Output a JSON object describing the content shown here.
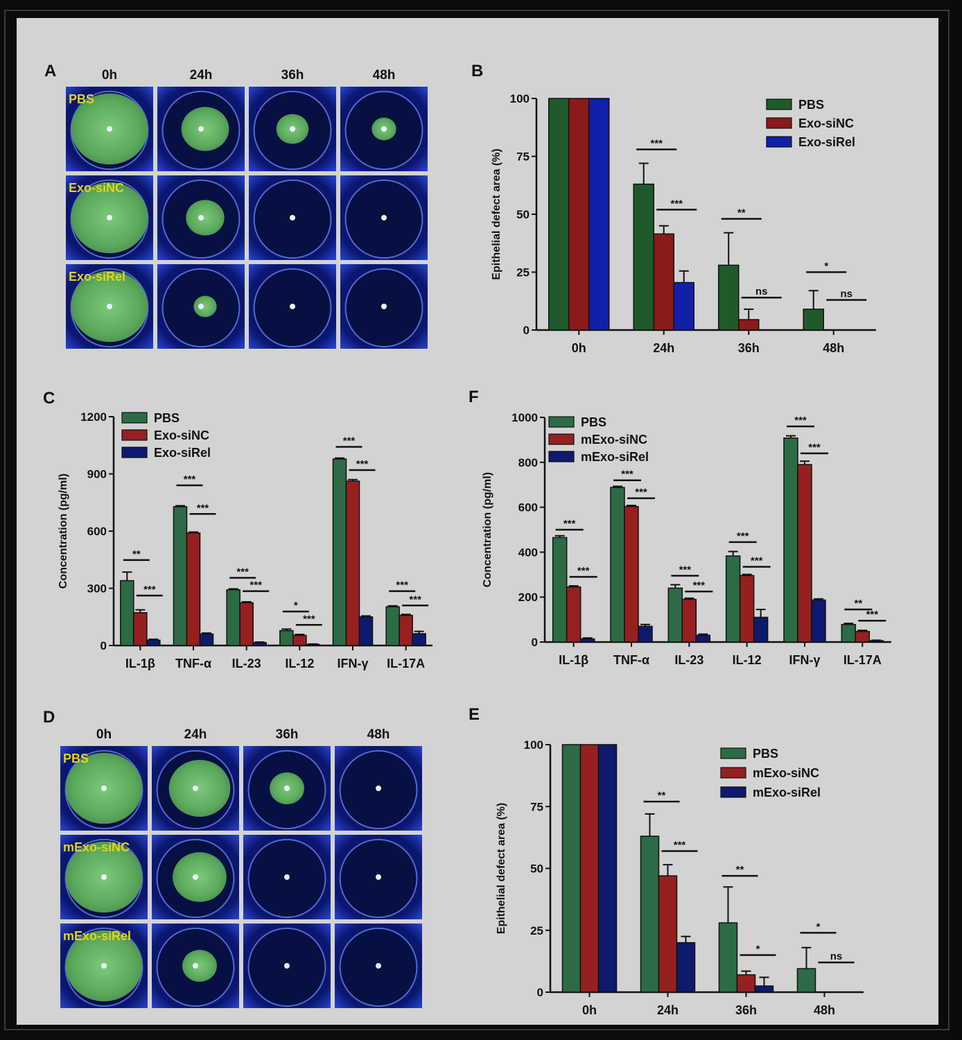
{
  "panels": {
    "A": {
      "label": "A",
      "times": [
        "0h",
        "24h",
        "36h",
        "48h"
      ],
      "rows": [
        "PBS",
        "Exo-siNC",
        "Exo-siRel"
      ],
      "blob": [
        [
          1.0,
          0.62,
          0.42,
          0.32
        ],
        [
          1.0,
          0.5,
          0,
          0
        ],
        [
          1.0,
          0.3,
          0,
          0
        ]
      ]
    },
    "D": {
      "label": "D",
      "times": [
        "0h",
        "24h",
        "36h",
        "48h"
      ],
      "rows": [
        "PBS",
        "mExo-siNC",
        "mExo-siRel"
      ],
      "blob": [
        [
          1.0,
          0.8,
          0.45,
          0
        ],
        [
          1.0,
          0.7,
          0,
          0
        ],
        [
          1.0,
          0.45,
          0,
          0
        ]
      ]
    }
  },
  "colors": {
    "green": "#1f5a2b",
    "red": "#8b1a1a",
    "blue": "#1020a8",
    "navy": "#0d1a6e",
    "green2": "#2c6b45",
    "red2": "#962020"
  },
  "chart_data": [
    {
      "id": "B",
      "label": "B",
      "type": "bar",
      "categories": [
        "0h",
        "24h",
        "36h",
        "48h"
      ],
      "ylabel": "Epithelial defect area (%)",
      "ylim": [
        0,
        100
      ],
      "yticks": [
        0,
        25,
        50,
        75,
        100
      ],
      "series": [
        {
          "name": "PBS",
          "color": "#1f5a2b",
          "values": [
            100,
            63,
            28,
            9
          ],
          "err": [
            0,
            9,
            14,
            8
          ]
        },
        {
          "name": "Exo-siNC",
          "color": "#8b1a1a",
          "values": [
            100,
            41.5,
            4.5,
            0
          ],
          "err": [
            0,
            3.5,
            4.5,
            0
          ]
        },
        {
          "name": "Exo-siRel",
          "color": "#1020a8",
          "values": [
            100,
            20.5,
            0,
            0
          ],
          "err": [
            0,
            5,
            0,
            0
          ]
        }
      ],
      "sig": [
        {
          "text": "***",
          "cat": 1,
          "from": 0,
          "to": 1,
          "y": 78
        },
        {
          "text": "***",
          "cat": 1,
          "from": 1,
          "to": 2,
          "y": 52
        },
        {
          "text": "**",
          "cat": 2,
          "from": 0,
          "to": 1,
          "y": 48
        },
        {
          "text": "ns",
          "cat": 2,
          "from": 1,
          "to": 2,
          "y": 14
        },
        {
          "text": "*",
          "cat": 3,
          "from": 0,
          "to": 1,
          "y": 25
        },
        {
          "text": "ns",
          "cat": 3,
          "from": 1,
          "to": 2,
          "y": 13
        }
      ]
    },
    {
      "id": "C",
      "label": "C",
      "type": "bar",
      "categories": [
        "IL-1β",
        "TNF-α",
        "IL-23",
        "IL-12",
        "IFN-γ",
        "IL-17A"
      ],
      "ylabel": "Concentration (pg/ml)",
      "ylim": [
        0,
        1200
      ],
      "yticks": [
        0,
        300,
        600,
        900,
        1200
      ],
      "series": [
        {
          "name": "PBS",
          "color": "#2c6b45",
          "values": [
            340,
            728,
            292,
            78,
            978,
            203
          ],
          "err": [
            45,
            5,
            5,
            8,
            5,
            5
          ]
        },
        {
          "name": "Exo-siNC",
          "color": "#962020",
          "values": [
            172,
            590,
            224,
            53,
            862,
            158
          ],
          "err": [
            15,
            5,
            5,
            5,
            8,
            5
          ]
        },
        {
          "name": "Exo-siRel",
          "color": "#0d1a6e",
          "values": [
            28,
            60,
            15,
            6,
            150,
            62
          ],
          "err": [
            5,
            5,
            3,
            2,
            5,
            12
          ]
        }
      ],
      "sig": [
        {
          "text": "**",
          "cat": 0,
          "from": 0,
          "to": 1,
          "y": 448
        },
        {
          "text": "***",
          "cat": 0,
          "from": 1,
          "to": 2,
          "y": 262
        },
        {
          "text": "***",
          "cat": 1,
          "from": 0,
          "to": 1,
          "y": 840
        },
        {
          "text": "***",
          "cat": 1,
          "from": 1,
          "to": 2,
          "y": 690
        },
        {
          "text": "***",
          "cat": 2,
          "from": 0,
          "to": 1,
          "y": 355
        },
        {
          "text": "***",
          "cat": 2,
          "from": 1,
          "to": 2,
          "y": 285
        },
        {
          "text": "*",
          "cat": 3,
          "from": 0,
          "to": 1,
          "y": 178
        },
        {
          "text": "***",
          "cat": 3,
          "from": 1,
          "to": 2,
          "y": 108
        },
        {
          "text": "***",
          "cat": 4,
          "from": 0,
          "to": 1,
          "y": 1042
        },
        {
          "text": "***",
          "cat": 4,
          "from": 1,
          "to": 2,
          "y": 920
        },
        {
          "text": "***",
          "cat": 5,
          "from": 0,
          "to": 1,
          "y": 285
        },
        {
          "text": "***",
          "cat": 5,
          "from": 1,
          "to": 2,
          "y": 210
        }
      ]
    },
    {
      "id": "F",
      "label": "F",
      "type": "bar",
      "categories": [
        "IL-1β",
        "TNF-α",
        "IL-23",
        "IL-12",
        "IFN-γ",
        "IL-17A"
      ],
      "ylabel": "Concentration (pg/ml)",
      "ylim": [
        0,
        1000
      ],
      "yticks": [
        0,
        200,
        400,
        600,
        800,
        1000
      ],
      "series": [
        {
          "name": "PBS",
          "color": "#2c6b45",
          "values": [
            465,
            688,
            240,
            383,
            908,
            78
          ],
          "err": [
            8,
            5,
            15,
            20,
            10,
            5
          ]
        },
        {
          "name": "mExo-siNC",
          "color": "#962020",
          "values": [
            245,
            603,
            190,
            296,
            790,
            47
          ],
          "err": [
            5,
            5,
            5,
            5,
            15,
            5
          ]
        },
        {
          "name": "mExo-siRel",
          "color": "#0d1a6e",
          "values": [
            14,
            70,
            30,
            110,
            187,
            6
          ],
          "err": [
            4,
            8,
            5,
            35,
            5,
            2
          ]
        }
      ],
      "sig": [
        {
          "text": "***",
          "cat": 0,
          "from": 0,
          "to": 1,
          "y": 500
        },
        {
          "text": "***",
          "cat": 0,
          "from": 1,
          "to": 2,
          "y": 290
        },
        {
          "text": "***",
          "cat": 1,
          "from": 0,
          "to": 1,
          "y": 720
        },
        {
          "text": "***",
          "cat": 1,
          "from": 1,
          "to": 2,
          "y": 640
        },
        {
          "text": "***",
          "cat": 2,
          "from": 0,
          "to": 1,
          "y": 295
        },
        {
          "text": "***",
          "cat": 2,
          "from": 1,
          "to": 2,
          "y": 225
        },
        {
          "text": "***",
          "cat": 3,
          "from": 0,
          "to": 1,
          "y": 445
        },
        {
          "text": "***",
          "cat": 3,
          "from": 1,
          "to": 2,
          "y": 335
        },
        {
          "text": "***",
          "cat": 4,
          "from": 0,
          "to": 1,
          "y": 960
        },
        {
          "text": "***",
          "cat": 4,
          "from": 1,
          "to": 2,
          "y": 840
        },
        {
          "text": "**",
          "cat": 5,
          "from": 0,
          "to": 1,
          "y": 145
        },
        {
          "text": "***",
          "cat": 5,
          "from": 1,
          "to": 2,
          "y": 95
        }
      ]
    },
    {
      "id": "E",
      "label": "E",
      "type": "bar",
      "categories": [
        "0h",
        "24h",
        "36h",
        "48h"
      ],
      "ylabel": "Epithelial defect area (%)",
      "ylim": [
        0,
        100
      ],
      "yticks": [
        0,
        25,
        50,
        75,
        100
      ],
      "series": [
        {
          "name": "PBS",
          "color": "#2c6b45",
          "values": [
            100,
            63,
            28,
            9.5
          ],
          "err": [
            0,
            9,
            14.5,
            8.5
          ]
        },
        {
          "name": "mExo-siNC",
          "color": "#962020",
          "values": [
            100,
            47,
            7,
            0
          ],
          "err": [
            0,
            4.5,
            1.5,
            0
          ]
        },
        {
          "name": "mExo-siRel",
          "color": "#0d1a6e",
          "values": [
            100,
            20,
            2.5,
            0
          ],
          "err": [
            0,
            2.5,
            3.5,
            0
          ]
        }
      ],
      "sig": [
        {
          "text": "**",
          "cat": 1,
          "from": 0,
          "to": 1,
          "y": 77
        },
        {
          "text": "***",
          "cat": 1,
          "from": 1,
          "to": 2,
          "y": 57
        },
        {
          "text": "**",
          "cat": 2,
          "from": 0,
          "to": 1,
          "y": 47
        },
        {
          "text": "*",
          "cat": 2,
          "from": 1,
          "to": 2,
          "y": 15
        },
        {
          "text": "*",
          "cat": 3,
          "from": 0,
          "to": 1,
          "y": 24
        },
        {
          "text": "ns",
          "cat": 3,
          "from": 1,
          "to": 2,
          "y": 12
        }
      ]
    }
  ]
}
